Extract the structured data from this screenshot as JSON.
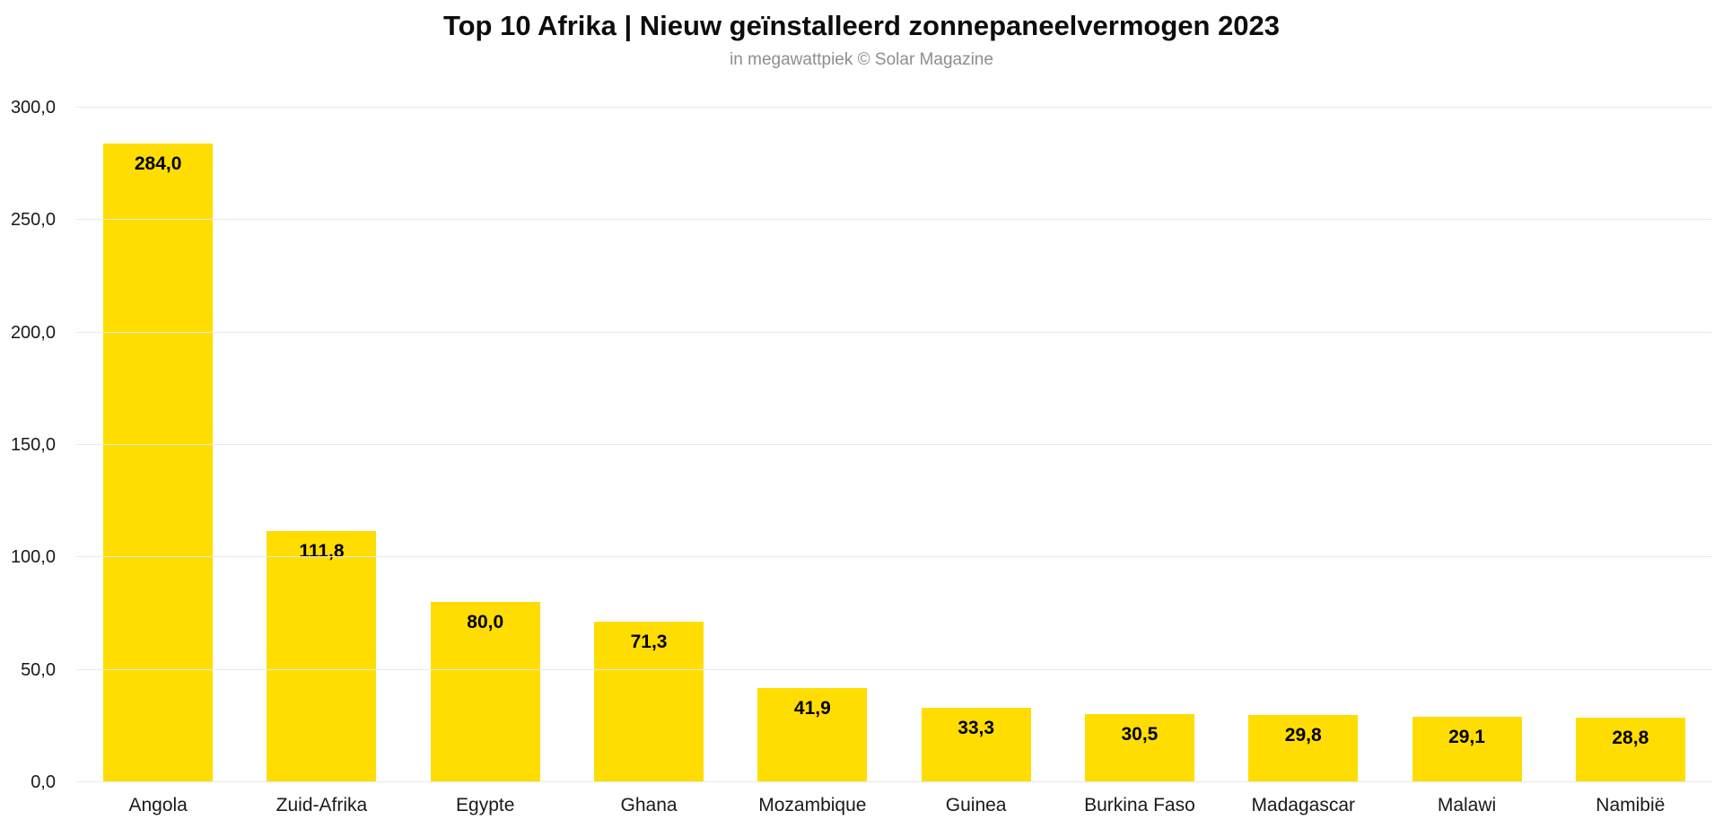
{
  "chart_data": {
    "type": "bar",
    "title": "Top 10 Afrika | Nieuw geïnstalleerd zonnepaneelvermogen 2023",
    "subtitle": "in megawattpiek © Solar Magazine",
    "unit": "megawattpiek",
    "categories": [
      "Angola",
      "Zuid-Afrika",
      "Egypte",
      "Ghana",
      "Mozambique",
      "Guinea",
      "Burkina Faso",
      "Madagascar",
      "Malawi",
      "Namibië"
    ],
    "values": [
      284.0,
      111.8,
      80.0,
      71.3,
      41.9,
      33.3,
      30.5,
      29.8,
      29.1,
      28.8
    ],
    "value_labels": [
      "284,0",
      "111,8",
      "80,0",
      "71,3",
      "41,9",
      "33,3",
      "30,5",
      "29,8",
      "29,1",
      "28,8"
    ],
    "xlabel": "",
    "ylabel": "",
    "ylim": [
      0,
      300
    ],
    "y_ticks": [
      0,
      50,
      100,
      150,
      200,
      250,
      300
    ],
    "y_tick_labels": [
      "0,0",
      "50,0",
      "100,0",
      "150,0",
      "200,0",
      "250,0",
      "300,0"
    ],
    "grid": true,
    "legend_position": "none",
    "colors": {
      "bar": "#FFDD00",
      "value_label": "#000000",
      "gridline": "#e9e9e9",
      "title": "#0d0d0d",
      "subtitle": "#8e8e8e",
      "tick_label": "#1a1a1a",
      "background": "#ffffff"
    }
  }
}
